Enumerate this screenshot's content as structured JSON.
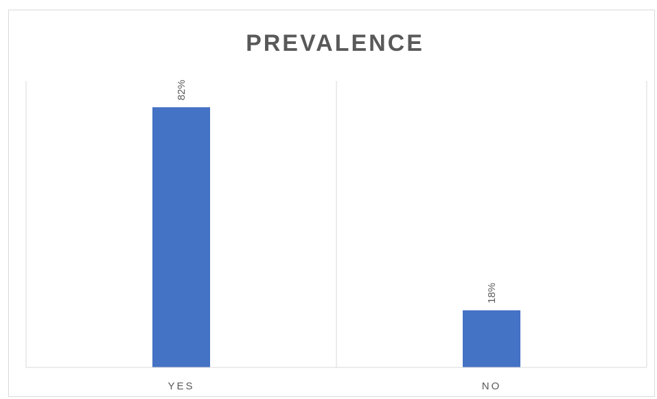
{
  "chart_data": {
    "type": "bar",
    "title": "PREVALENCE",
    "categories": [
      "YES",
      "NO"
    ],
    "values": [
      82,
      18
    ],
    "value_labels": [
      "82%",
      "18%"
    ],
    "xlabel": "",
    "ylabel": "",
    "ylim": [
      0,
      100
    ],
    "grid": "vertical category separators",
    "legend": "none",
    "bar_color": "#4472c4",
    "axis_color": "#d9d9d9",
    "text_color": "#595959"
  }
}
